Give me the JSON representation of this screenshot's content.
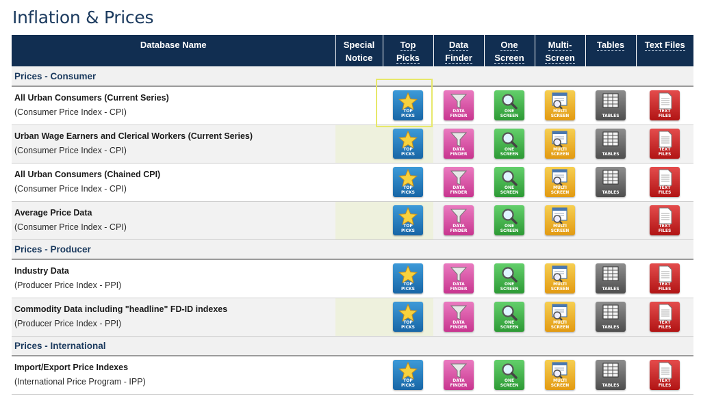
{
  "page": {
    "title": "Inflation & Prices"
  },
  "table": {
    "columns": {
      "name": "Database Name",
      "special": [
        "Special",
        "Notice"
      ],
      "top_picks": [
        "Top",
        "Picks"
      ],
      "data_finder": [
        "Data",
        "Finder"
      ],
      "one_screen": [
        "One",
        "Screen"
      ],
      "multi_screen": [
        "Multi-",
        "Screen"
      ],
      "tables": "Tables",
      "text_files": "Text Files"
    },
    "sections": [
      {
        "label": "Prices - Consumer",
        "rows": [
          {
            "title": "All Urban Consumers (Current Series)",
            "subtitle": "(Consumer Price Index - CPI)"
          },
          {
            "title": "Urban Wage Earners and Clerical Workers (Current Series)",
            "subtitle": "(Consumer Price Index - CPI)"
          },
          {
            "title": "All Urban Consumers (Chained CPI)",
            "subtitle": "(Consumer Price Index - CPI)"
          },
          {
            "title": "Average Price Data",
            "subtitle": "(Consumer Price Index - CPI)"
          }
        ]
      },
      {
        "label": "Prices - Producer",
        "rows": [
          {
            "title": "Industry Data",
            "subtitle": "(Producer Price Index - PPI)"
          },
          {
            "title": "Commodity Data including \"headline\" FD-ID indexes",
            "subtitle": "(Producer Price Index - PPI)"
          }
        ]
      },
      {
        "label": "Prices - International",
        "rows": [
          {
            "title": "Import/Export Price Indexes",
            "subtitle": "(International Price Program - IPP)"
          }
        ]
      }
    ]
  },
  "tiles": {
    "top_picks": [
      "TOP",
      "PICKS"
    ],
    "data_finder": [
      "DATA",
      "FINDER"
    ],
    "one_screen": [
      "ONE",
      "SCREEN"
    ],
    "multi_screen": [
      "MULTI",
      "SCREEN"
    ],
    "tables": [
      "TABLES"
    ],
    "text_files": [
      "TEXT",
      "FILES"
    ]
  },
  "icons": {
    "top_picks": "star-icon",
    "data_finder": "funnel-icon",
    "one_screen": "magnifier-icon",
    "multi_screen": "multi-window-icon",
    "tables": "table-grid-icon",
    "text_files": "text-document-icon"
  },
  "colors": {
    "header_bg": "#112e51",
    "title": "#1b3a5e",
    "top_picks": "#1e73b9",
    "data_finder": "#d44aa0",
    "one_screen": "#3aaa42",
    "multi_screen": "#eeb22a",
    "tables": "#666666",
    "text_files": "#c91f1f",
    "focus_outline": "#e7e86a"
  }
}
